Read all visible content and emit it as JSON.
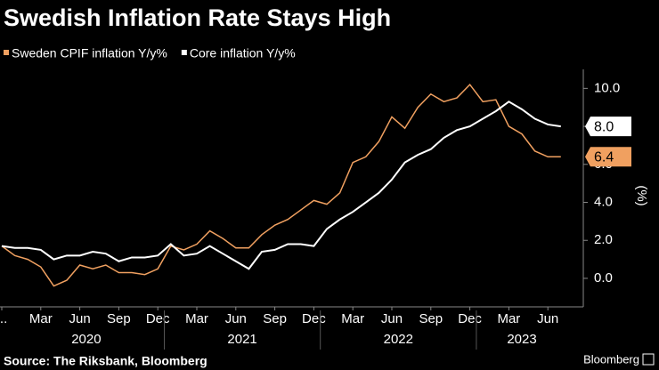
{
  "chart_data": {
    "type": "line",
    "title": "Swedish Inflation Rate Stays High",
    "y_label": "(%)",
    "source": "Source: The Riksbank, Bloomberg",
    "brand": "Bloomberg",
    "categories": [
      "...",
      null,
      null,
      "Mar",
      null,
      null,
      "Jun",
      null,
      null,
      "Sep",
      null,
      null,
      "Dec",
      null,
      null,
      "Mar",
      null,
      null,
      "Jun",
      null,
      null,
      "Sep",
      null,
      null,
      "Dec",
      null,
      null,
      "Mar",
      null,
      null,
      "Jun",
      null,
      null,
      "Sep",
      null,
      null,
      "Dec",
      null,
      null,
      "Mar",
      null,
      null,
      "Jun",
      null
    ],
    "year_labels": [
      "2020",
      "2021",
      "2022",
      "2023"
    ],
    "series": [
      {
        "name": "Sweden CPIF inflation Y/y%",
        "color": "#f0a060",
        "values": [
          1.7,
          1.2,
          1.0,
          0.6,
          -0.4,
          -0.1,
          0.7,
          0.5,
          0.7,
          0.3,
          0.3,
          0.2,
          0.5,
          1.7,
          1.5,
          1.8,
          2.5,
          2.1,
          1.6,
          1.6,
          2.3,
          2.8,
          3.1,
          3.6,
          4.1,
          3.9,
          4.5,
          6.1,
          6.4,
          7.2,
          8.5,
          7.9,
          9.0,
          9.7,
          9.3,
          9.5,
          10.2,
          9.3,
          9.4,
          8.0,
          7.6,
          6.7,
          6.4,
          6.4
        ],
        "value_labels": [
          null,
          null,
          null,
          null,
          null,
          null,
          null,
          null,
          null,
          null,
          null,
          null,
          null,
          null,
          null,
          null,
          null,
          null,
          null,
          null,
          null,
          null,
          null,
          null,
          null,
          null,
          null,
          null,
          null,
          null,
          null,
          null,
          null,
          null,
          null,
          null,
          null,
          null,
          null,
          null,
          null,
          null,
          null,
          "6.4"
        ]
      },
      {
        "name": "Core inflation Y/y%",
        "color": "#ffffff",
        "values": [
          1.7,
          1.6,
          1.6,
          1.5,
          1.0,
          1.2,
          1.2,
          1.4,
          1.3,
          0.9,
          1.1,
          1.1,
          1.2,
          1.8,
          1.2,
          1.3,
          1.7,
          1.3,
          0.9,
          0.5,
          1.4,
          1.5,
          1.8,
          1.8,
          1.7,
          2.6,
          3.1,
          3.5,
          4.0,
          4.5,
          5.2,
          6.1,
          6.5,
          6.8,
          7.4,
          7.8,
          8.0,
          8.4,
          8.8,
          9.3,
          8.9,
          8.4,
          8.1,
          8.0
        ],
        "value_labels": [
          null,
          null,
          null,
          null,
          null,
          null,
          null,
          null,
          null,
          null,
          null,
          null,
          null,
          null,
          null,
          null,
          null,
          null,
          null,
          null,
          null,
          null,
          null,
          null,
          null,
          null,
          null,
          null,
          null,
          null,
          null,
          null,
          null,
          null,
          null,
          null,
          null,
          null,
          null,
          null,
          null,
          null,
          null,
          "8.0"
        ]
      }
    ],
    "ylim": [
      -1.5,
      11
    ],
    "yticks": [
      {
        "value": 0,
        "label": "0.0"
      },
      {
        "value": 2,
        "label": "2.0"
      },
      {
        "value": 4,
        "label": "4.0"
      },
      {
        "value": 6,
        "label": "6.0"
      },
      {
        "value": 8,
        "label": "8.0"
      },
      {
        "value": 10,
        "label": "10.0"
      }
    ],
    "grid": false
  }
}
